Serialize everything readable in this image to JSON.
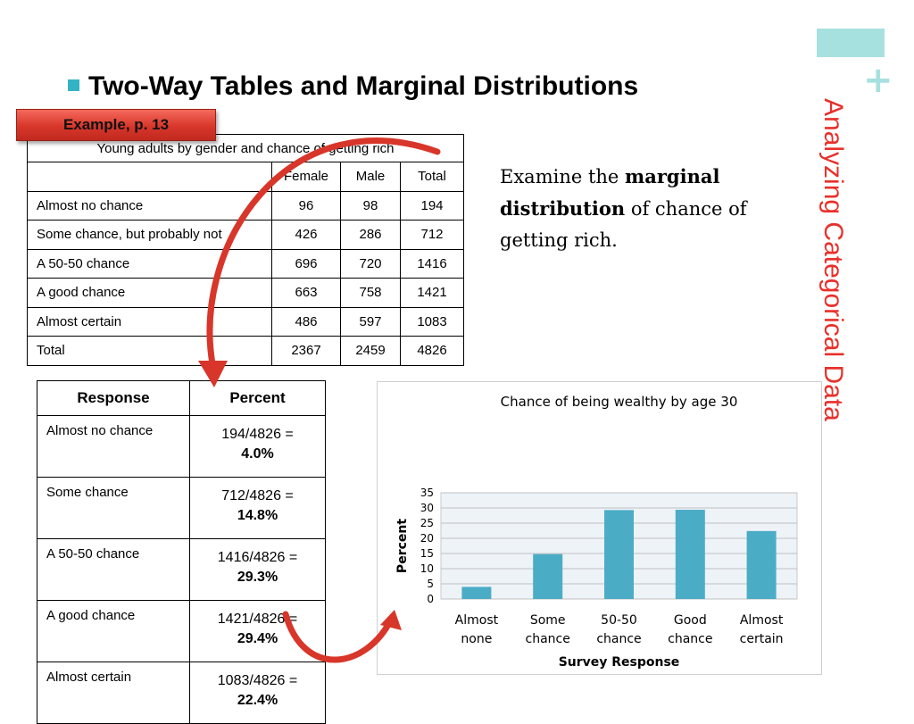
{
  "heading": "Two-Way Tables and Marginal Distributions",
  "side_title": "Analyzing Categorical Data",
  "example_tag": "Example, p. 13",
  "two_way_table": {
    "caption": "Young adults by gender and chance of getting rich",
    "headers": [
      "",
      "Female",
      "Male",
      "Total"
    ],
    "rows": [
      [
        "Almost no chance",
        "96",
        "98",
        "194"
      ],
      [
        "Some chance, but probably not",
        "426",
        "286",
        "712"
      ],
      [
        "A 50-50 chance",
        "696",
        "720",
        "1416"
      ],
      [
        "A good chance",
        "663",
        "758",
        "1421"
      ],
      [
        "Almost certain",
        "486",
        "597",
        "1083"
      ],
      [
        "Total",
        "2367",
        "2459",
        "4826"
      ]
    ]
  },
  "marginal_table": {
    "headers": [
      "Response",
      "Percent"
    ],
    "rows": [
      {
        "response": "Almost no chance",
        "calc": "194/4826 =",
        "pct": "4.0%"
      },
      {
        "response": "Some chance",
        "calc": "712/4826 =",
        "pct": "14.8%"
      },
      {
        "response": "A 50-50 chance",
        "calc": "1416/4826 =",
        "pct": "29.3%"
      },
      {
        "response": "A good chance",
        "calc": "1421/4826 =",
        "pct": "29.4%"
      },
      {
        "response": "Almost certain",
        "calc": "1083/4826 =",
        "pct": "22.4%"
      }
    ]
  },
  "examine": {
    "pre": "Examine the ",
    "bold": "marginal distribution",
    "post": " of chance of getting rich."
  },
  "colors": {
    "accent_teal": "#a6e1df",
    "bullet": "#35b3c5",
    "side_title": "#e8302a",
    "bar": "#4bacc6",
    "arrow": "#d8362a"
  },
  "chart_data": {
    "type": "bar",
    "title": "Chance of being wealthy by age 30",
    "xlabel": "Survey Response",
    "ylabel": "Percent",
    "categories": [
      [
        "Almost",
        "none"
      ],
      [
        "Some",
        "chance"
      ],
      [
        "50-50",
        "chance"
      ],
      [
        "Good",
        "chance"
      ],
      [
        "Almost",
        "certain"
      ]
    ],
    "values": [
      4.0,
      14.8,
      29.3,
      29.4,
      22.4
    ],
    "ylim": [
      0,
      35
    ],
    "yticks": [
      0,
      5,
      10,
      15,
      20,
      25,
      30,
      35
    ],
    "grid": true
  }
}
